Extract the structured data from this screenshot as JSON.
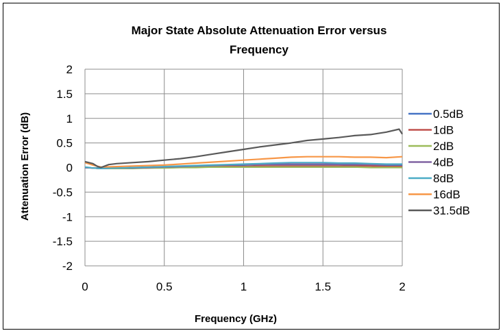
{
  "chart_data": {
    "type": "line",
    "title_lines": [
      "Major State Absolute Attenuation Error versus",
      "Frequency"
    ],
    "xlabel": "Frequency (GHz)",
    "ylabel": "Attenuation Error (dB)",
    "xlim": [
      0,
      2
    ],
    "ylim": [
      -2,
      2
    ],
    "x_ticks": [
      "0",
      "0.5",
      "1",
      "1.5",
      "2"
    ],
    "y_ticks": [
      "2",
      "1.5",
      "1",
      "0.5",
      "0",
      "-0.5",
      "-1",
      "-1.5",
      "-2"
    ],
    "grid": true,
    "legend_position": "right",
    "series": [
      {
        "name": "0.5dB",
        "color": "#4472C4",
        "x": [
          0,
          0.05,
          0.1,
          0.2,
          0.3,
          0.4,
          0.5,
          0.6,
          0.7,
          0.8,
          0.9,
          1.0,
          1.1,
          1.2,
          1.3,
          1.4,
          1.5,
          1.6,
          1.7,
          1.8,
          1.9,
          2.0
        ],
        "y": [
          0.0,
          -0.01,
          -0.02,
          -0.02,
          -0.01,
          0.0,
          0.01,
          0.02,
          0.03,
          0.04,
          0.05,
          0.05,
          0.06,
          0.06,
          0.06,
          0.06,
          0.06,
          0.06,
          0.05,
          0.05,
          0.05,
          0.05
        ]
      },
      {
        "name": "1dB",
        "color": "#C0504D",
        "x": [
          0,
          0.05,
          0.1,
          0.2,
          0.3,
          0.4,
          0.5,
          0.6,
          0.7,
          0.8,
          0.9,
          1.0,
          1.1,
          1.2,
          1.3,
          1.4,
          1.5,
          1.6,
          1.7,
          1.8,
          1.9,
          2.0
        ],
        "y": [
          0.0,
          -0.01,
          -0.02,
          -0.02,
          -0.01,
          -0.01,
          0.0,
          0.01,
          0.01,
          0.02,
          0.02,
          0.02,
          0.03,
          0.03,
          0.03,
          0.03,
          0.03,
          0.03,
          0.03,
          0.03,
          0.02,
          0.02
        ]
      },
      {
        "name": "2dB",
        "color": "#9BBB59",
        "x": [
          0,
          0.05,
          0.1,
          0.2,
          0.3,
          0.4,
          0.5,
          0.6,
          0.7,
          0.8,
          0.9,
          1.0,
          1.1,
          1.2,
          1.3,
          1.4,
          1.5,
          1.6,
          1.7,
          1.8,
          1.9,
          2.0
        ],
        "y": [
          0.0,
          -0.01,
          -0.02,
          -0.02,
          -0.02,
          -0.01,
          -0.01,
          0.0,
          0.0,
          0.01,
          0.01,
          0.01,
          0.01,
          0.01,
          0.01,
          0.01,
          0.01,
          0.01,
          0.01,
          0.0,
          0.0,
          0.0
        ]
      },
      {
        "name": "4dB",
        "color": "#8064A2",
        "x": [
          0,
          0.05,
          0.1,
          0.2,
          0.3,
          0.4,
          0.5,
          0.6,
          0.7,
          0.8,
          0.9,
          1.0,
          1.1,
          1.2,
          1.3,
          1.4,
          1.5,
          1.6,
          1.7,
          1.8,
          1.9,
          2.0
        ],
        "y": [
          0.0,
          -0.01,
          -0.02,
          -0.01,
          -0.01,
          0.0,
          0.01,
          0.02,
          0.03,
          0.04,
          0.05,
          0.06,
          0.06,
          0.07,
          0.07,
          0.07,
          0.07,
          0.07,
          0.07,
          0.06,
          0.06,
          0.06
        ]
      },
      {
        "name": "8dB",
        "color": "#4BACC6",
        "x": [
          0,
          0.05,
          0.1,
          0.2,
          0.3,
          0.4,
          0.5,
          0.6,
          0.7,
          0.8,
          0.9,
          1.0,
          1.1,
          1.2,
          1.3,
          1.4,
          1.5,
          1.6,
          1.7,
          1.8,
          1.9,
          2.0
        ],
        "y": [
          0.01,
          -0.01,
          -0.02,
          -0.01,
          0.0,
          0.01,
          0.02,
          0.03,
          0.04,
          0.05,
          0.06,
          0.07,
          0.08,
          0.09,
          0.1,
          0.1,
          0.1,
          0.09,
          0.09,
          0.08,
          0.07,
          0.07
        ]
      },
      {
        "name": "16dB",
        "color": "#F79646",
        "x": [
          0,
          0.05,
          0.1,
          0.2,
          0.3,
          0.4,
          0.5,
          0.6,
          0.7,
          0.8,
          0.9,
          1.0,
          1.1,
          1.2,
          1.3,
          1.4,
          1.5,
          1.6,
          1.7,
          1.8,
          1.9,
          2.0
        ],
        "y": [
          0.1,
          0.05,
          0.01,
          0.02,
          0.03,
          0.04,
          0.05,
          0.07,
          0.09,
          0.11,
          0.13,
          0.15,
          0.17,
          0.19,
          0.21,
          0.22,
          0.22,
          0.22,
          0.21,
          0.21,
          0.2,
          0.22
        ]
      },
      {
        "name": "31.5dB",
        "color": "#595959",
        "x": [
          0,
          0.05,
          0.08,
          0.1,
          0.15,
          0.2,
          0.3,
          0.4,
          0.5,
          0.6,
          0.7,
          0.8,
          0.9,
          1.0,
          1.1,
          1.2,
          1.3,
          1.4,
          1.5,
          1.6,
          1.7,
          1.8,
          1.9,
          1.98,
          2.0
        ],
        "y": [
          0.12,
          0.08,
          0.02,
          0.0,
          0.06,
          0.08,
          0.1,
          0.12,
          0.15,
          0.18,
          0.22,
          0.27,
          0.32,
          0.37,
          0.42,
          0.46,
          0.5,
          0.55,
          0.58,
          0.61,
          0.65,
          0.67,
          0.72,
          0.78,
          0.68
        ]
      }
    ]
  }
}
